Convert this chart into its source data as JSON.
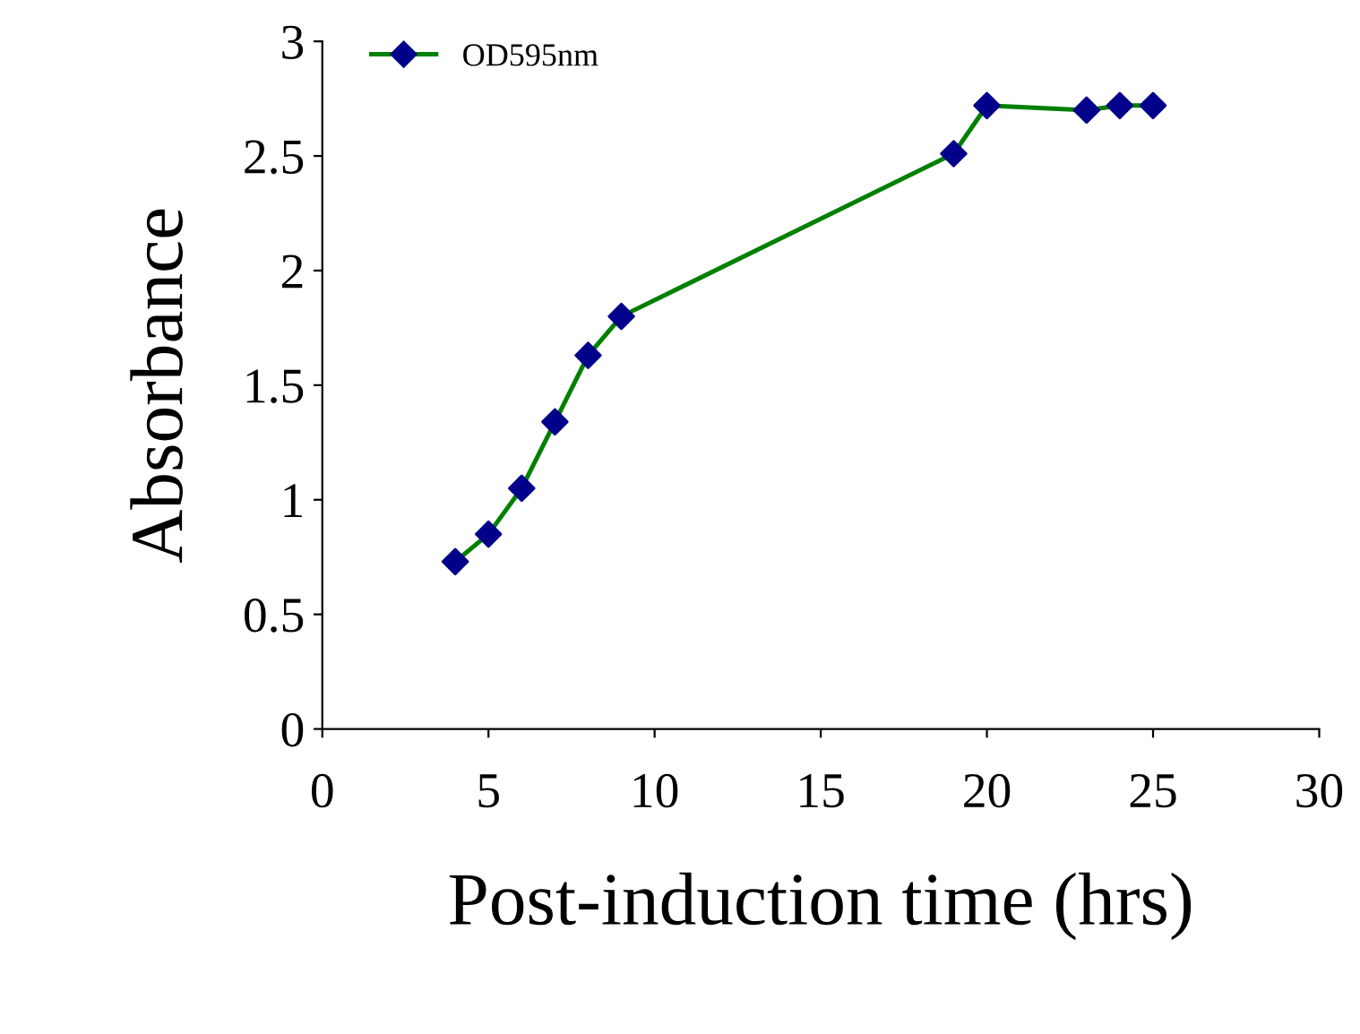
{
  "chart_data": {
    "type": "line",
    "xlabel": "Post-induction time (hrs)",
    "ylabel": "Absorbance",
    "x": [
      4,
      5,
      6,
      7,
      8,
      9,
      19,
      20,
      23,
      24,
      25
    ],
    "series": [
      {
        "name": "OD595nm",
        "color": "#008000",
        "values": [
          0.73,
          0.85,
          1.05,
          1.34,
          1.63,
          1.8,
          2.51,
          2.72,
          2.7,
          2.72,
          2.72
        ],
        "colors": [
          "#00008b",
          "#00008b",
          "#00008b",
          "#00008b",
          "#00008b",
          "#00008b",
          "#00008b",
          "#00008b",
          "#00008b",
          "#00008b",
          "#00008b"
        ]
      }
    ],
    "xlim": [
      0,
      30
    ],
    "xticks": [
      0,
      5,
      10,
      15,
      20,
      25,
      30
    ],
    "ylim": [
      0,
      3
    ],
    "yticks": [
      0,
      0.5,
      1,
      1.5,
      2,
      2.5,
      3
    ],
    "grid": false,
    "legend": "top left",
    "marker": "diamond",
    "line_style": "solid"
  }
}
